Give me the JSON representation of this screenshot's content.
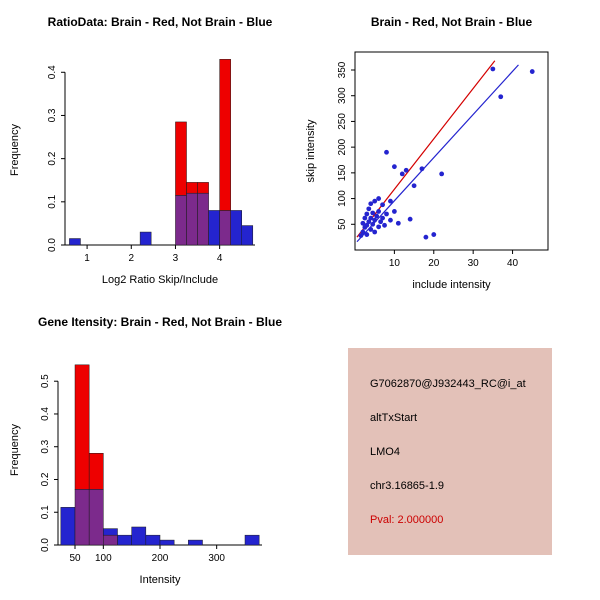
{
  "window": {
    "bg": "#ffffff"
  },
  "chart_data": [
    {
      "id": "ratio-histogram",
      "type": "bar",
      "subtype": "overlaid-histogram",
      "title": "RatioData: Brain - Red, Not Brain - Blue",
      "xlabel": "Log2 Ratio Skip/Include",
      "ylabel": "Frequency",
      "xlim": [
        0.5,
        4.8
      ],
      "ylim": [
        0,
        0.44
      ],
      "xticks": [
        1,
        2,
        3,
        4
      ],
      "yticks": [
        "0.0",
        "0.1",
        "0.2",
        "0.3",
        "0.4"
      ],
      "bin_width": 0.25,
      "grid": false,
      "legend": "none",
      "series": [
        {
          "name": "Brain",
          "color": "#ee0000",
          "bins": [
            [
              3.0,
              0.285
            ],
            [
              3.25,
              0.145
            ],
            [
              3.5,
              0.145
            ],
            [
              4.0,
              0.43
            ]
          ]
        },
        {
          "name": "Not Brain",
          "color": "#2424cf",
          "bins": [
            [
              0.6,
              0.015
            ],
            [
              2.2,
              0.03
            ],
            [
              3.0,
              0.115
            ],
            [
              3.25,
              0.12
            ],
            [
              3.5,
              0.12
            ],
            [
              3.75,
              0.08
            ],
            [
              4.0,
              0.08
            ],
            [
              4.25,
              0.08
            ],
            [
              4.5,
              0.045
            ]
          ]
        }
      ],
      "overlap_color": "#7c2a8c"
    },
    {
      "id": "intensity-scatter",
      "type": "scatter",
      "title": "Brain - Red, Not Brain - Blue",
      "xlabel": "include intensity",
      "ylabel": "skip intensity",
      "xlim": [
        0,
        49
      ],
      "ylim": [
        0,
        385
      ],
      "xticks": [
        10,
        20,
        30,
        40
      ],
      "yticks": [
        50,
        100,
        150,
        200,
        250,
        300,
        350
      ],
      "grid": false,
      "legend": "none",
      "point_color": "#2424cf",
      "points": [
        [
          1.5,
          28
        ],
        [
          2,
          35
        ],
        [
          2,
          52
        ],
        [
          2.5,
          44
        ],
        [
          2.5,
          62
        ],
        [
          3,
          30
        ],
        [
          3,
          48
        ],
        [
          3,
          70
        ],
        [
          3.5,
          55
        ],
        [
          3.5,
          80
        ],
        [
          4,
          40
        ],
        [
          4,
          62
        ],
        [
          4,
          90
        ],
        [
          4.5,
          50
        ],
        [
          4.5,
          72
        ],
        [
          5,
          35
        ],
        [
          5,
          58
        ],
        [
          5,
          95
        ],
        [
          5.5,
          66
        ],
        [
          6,
          45
        ],
        [
          6,
          75
        ],
        [
          6,
          100
        ],
        [
          6.5,
          55
        ],
        [
          7,
          62
        ],
        [
          7,
          88
        ],
        [
          7.5,
          48
        ],
        [
          8,
          70
        ],
        [
          8,
          190
        ],
        [
          9,
          58
        ],
        [
          9,
          95
        ],
        [
          10,
          75
        ],
        [
          10,
          162
        ],
        [
          11,
          52
        ],
        [
          12,
          148
        ],
        [
          13,
          155
        ],
        [
          14,
          60
        ],
        [
          15,
          125
        ],
        [
          17,
          158
        ],
        [
          18,
          25
        ],
        [
          20,
          30
        ],
        [
          22,
          148
        ],
        [
          35,
          352
        ],
        [
          37,
          298
        ],
        [
          45,
          347
        ]
      ],
      "lines": [
        {
          "name": "brain-fit",
          "color": "#d40000",
          "x1": 0.5,
          "y1": 25,
          "x2": 35.5,
          "y2": 368
        },
        {
          "name": "notbrain-fit",
          "color": "#2424cf",
          "x1": 0.5,
          "y1": 16,
          "x2": 41.5,
          "y2": 360
        }
      ]
    },
    {
      "id": "gene-histogram",
      "type": "bar",
      "subtype": "overlaid-histogram",
      "title": "Gene Itensity: Brain - Red, Not Brain - Blue",
      "xlabel": "Intensity",
      "ylabel": "Frequency",
      "xlim": [
        20,
        380
      ],
      "ylim": [
        0,
        0.58
      ],
      "xticks": [
        50,
        100,
        200,
        300
      ],
      "yticks": [
        "0.0",
        "0.1",
        "0.2",
        "0.3",
        "0.4",
        "0.5"
      ],
      "bin_width": 25,
      "grid": false,
      "legend": "none",
      "series": [
        {
          "name": "Brain",
          "color": "#ee0000",
          "bins": [
            [
              50,
              0.55
            ],
            [
              75,
              0.28
            ],
            [
              100,
              0.03
            ]
          ]
        },
        {
          "name": "Not Brain",
          "color": "#2424cf",
          "bins": [
            [
              25,
              0.115
            ],
            [
              50,
              0.17
            ],
            [
              75,
              0.17
            ],
            [
              100,
              0.05
            ],
            [
              125,
              0.03
            ],
            [
              150,
              0.055
            ],
            [
              175,
              0.03
            ],
            [
              200,
              0.015
            ],
            [
              250,
              0.015
            ],
            [
              350,
              0.03
            ]
          ]
        }
      ],
      "overlap_color": "#7c2a8c"
    }
  ],
  "info_box": {
    "bg": "#e3c1b8",
    "pval_color": "#cc0000",
    "lines": [
      "G7062870@J932443_RC@i_at",
      "altTxStart",
      "LMO4",
      "chr3.16865-1.9",
      "Pval: 2.000000"
    ]
  }
}
